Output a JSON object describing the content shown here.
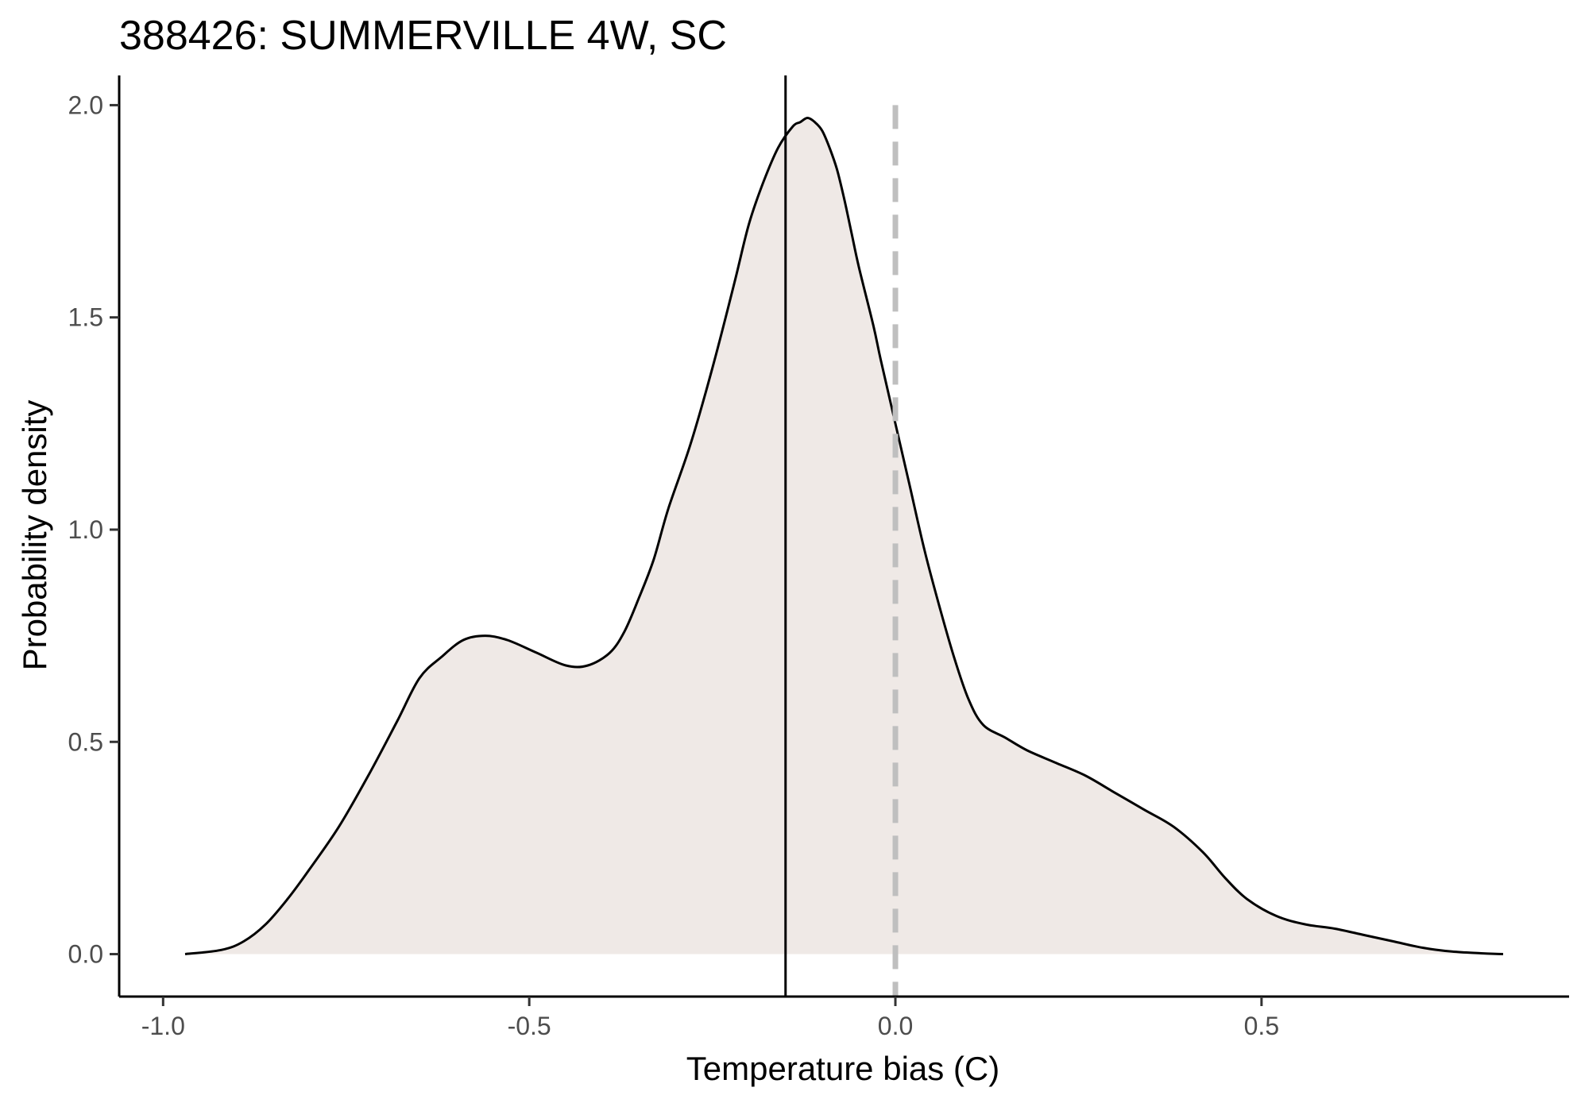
{
  "chart_data": {
    "type": "area",
    "title": "388426: SUMMERVILLE 4W, SC",
    "xlabel": "Temperature bias (C)",
    "ylabel": "Probability density",
    "xlim": [
      -1.06,
      0.92
    ],
    "ylim": [
      -0.1,
      2.07
    ],
    "x_ticks": [
      -1.0,
      -0.5,
      0.0,
      0.5
    ],
    "x_tick_labels": [
      "-1.0",
      "-0.5",
      "0.0",
      "0.5"
    ],
    "y_ticks": [
      0.0,
      0.5,
      1.0,
      1.5,
      2.0
    ],
    "y_tick_labels": [
      "0.0",
      "0.5",
      "1.0",
      "1.5",
      "2.0"
    ],
    "grid": false,
    "fill_color": "#efe9e6",
    "line_color": "#000000",
    "series": [
      {
        "x": [
          -0.97,
          -0.92,
          -0.89,
          -0.86,
          -0.83,
          -0.8,
          -0.76,
          -0.72,
          -0.68,
          -0.65,
          -0.62,
          -0.59,
          -0.56,
          -0.53,
          -0.49,
          -0.45,
          -0.42,
          -0.39,
          -0.37,
          -0.35,
          -0.33,
          -0.31,
          -0.28,
          -0.25,
          -0.22,
          -0.2,
          -0.18,
          -0.16,
          -0.14,
          -0.13,
          -0.12,
          -0.11,
          -0.1,
          -0.09,
          -0.08,
          -0.07,
          -0.06,
          -0.05,
          -0.03,
          -0.02,
          0.0,
          0.02,
          0.04,
          0.06,
          0.08,
          0.1,
          0.12,
          0.15,
          0.18,
          0.22,
          0.26,
          0.3,
          0.34,
          0.38,
          0.42,
          0.45,
          0.48,
          0.52,
          0.56,
          0.6,
          0.64,
          0.68,
          0.72,
          0.76,
          0.8,
          0.83
        ],
        "y": [
          0.0,
          0.01,
          0.03,
          0.07,
          0.13,
          0.2,
          0.3,
          0.42,
          0.55,
          0.65,
          0.7,
          0.74,
          0.75,
          0.74,
          0.71,
          0.68,
          0.68,
          0.71,
          0.76,
          0.84,
          0.93,
          1.05,
          1.2,
          1.38,
          1.58,
          1.72,
          1.82,
          1.9,
          1.95,
          1.96,
          1.97,
          1.96,
          1.94,
          1.9,
          1.85,
          1.78,
          1.7,
          1.62,
          1.48,
          1.4,
          1.25,
          1.1,
          0.95,
          0.82,
          0.7,
          0.6,
          0.54,
          0.51,
          0.48,
          0.45,
          0.42,
          0.38,
          0.34,
          0.3,
          0.24,
          0.18,
          0.13,
          0.09,
          0.07,
          0.06,
          0.045,
          0.03,
          0.015,
          0.006,
          0.002,
          0.0
        ]
      }
    ],
    "vertical_lines": [
      {
        "x": -0.15,
        "style": "solid",
        "color": "#000000"
      },
      {
        "x": 0.0,
        "style": "dashed",
        "color": "#bfbfbf"
      }
    ]
  }
}
